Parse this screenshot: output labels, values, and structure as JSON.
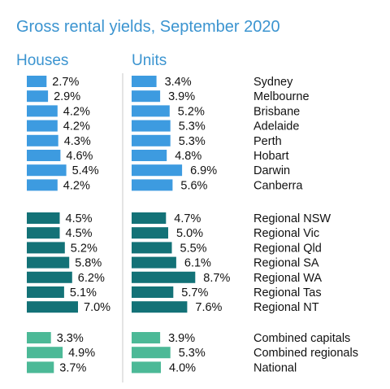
{
  "title": "Gross rental yields, September 2020",
  "houses_header": "Houses",
  "units_header": "Units",
  "colors": {
    "title": "#3b94d0",
    "capitals": "#3d9be0",
    "regionals": "#137277",
    "combined": "#4cb997",
    "separator": "#c8c8c8"
  },
  "chart_data": {
    "type": "bar",
    "title": "Gross rental yields, September 2020",
    "orientation": "horizontal",
    "value_format": "percent",
    "groups": [
      {
        "color": "#3d9be0",
        "rows": [
          {
            "label": "Sydney",
            "houses": 2.7,
            "units": 3.4
          },
          {
            "label": "Melbourne",
            "houses": 2.9,
            "units": 3.9
          },
          {
            "label": "Brisbane",
            "houses": 4.2,
            "units": 5.2
          },
          {
            "label": "Adelaide",
            "houses": 4.2,
            "units": 5.3
          },
          {
            "label": "Perth",
            "houses": 4.3,
            "units": 5.3
          },
          {
            "label": "Hobart",
            "houses": 4.6,
            "units": 4.8
          },
          {
            "label": "Darwin",
            "houses": 5.4,
            "units": 6.9
          },
          {
            "label": "Canberra",
            "houses": 4.2,
            "units": 5.6
          }
        ]
      },
      {
        "color": "#137277",
        "rows": [
          {
            "label": "Regional NSW",
            "houses": 4.5,
            "units": 4.7
          },
          {
            "label": "Regional Vic",
            "houses": 4.5,
            "units": 5.0
          },
          {
            "label": "Regional Qld",
            "houses": 5.2,
            "units": 5.5
          },
          {
            "label": "Regional SA",
            "houses": 5.8,
            "units": 6.1
          },
          {
            "label": "Regional WA",
            "houses": 6.2,
            "units": 8.7
          },
          {
            "label": "Regional Tas",
            "houses": 5.1,
            "units": 5.7
          },
          {
            "label": "Regional NT",
            "houses": 7.0,
            "units": 7.6
          }
        ]
      },
      {
        "color": "#4cb997",
        "rows": [
          {
            "label": "Combined capitals",
            "houses": 3.3,
            "units": 3.9
          },
          {
            "label": "Combined regionals",
            "houses": 4.9,
            "units": 5.3
          },
          {
            "label": "National",
            "houses": 3.7,
            "units": 4.0
          }
        ]
      }
    ]
  }
}
